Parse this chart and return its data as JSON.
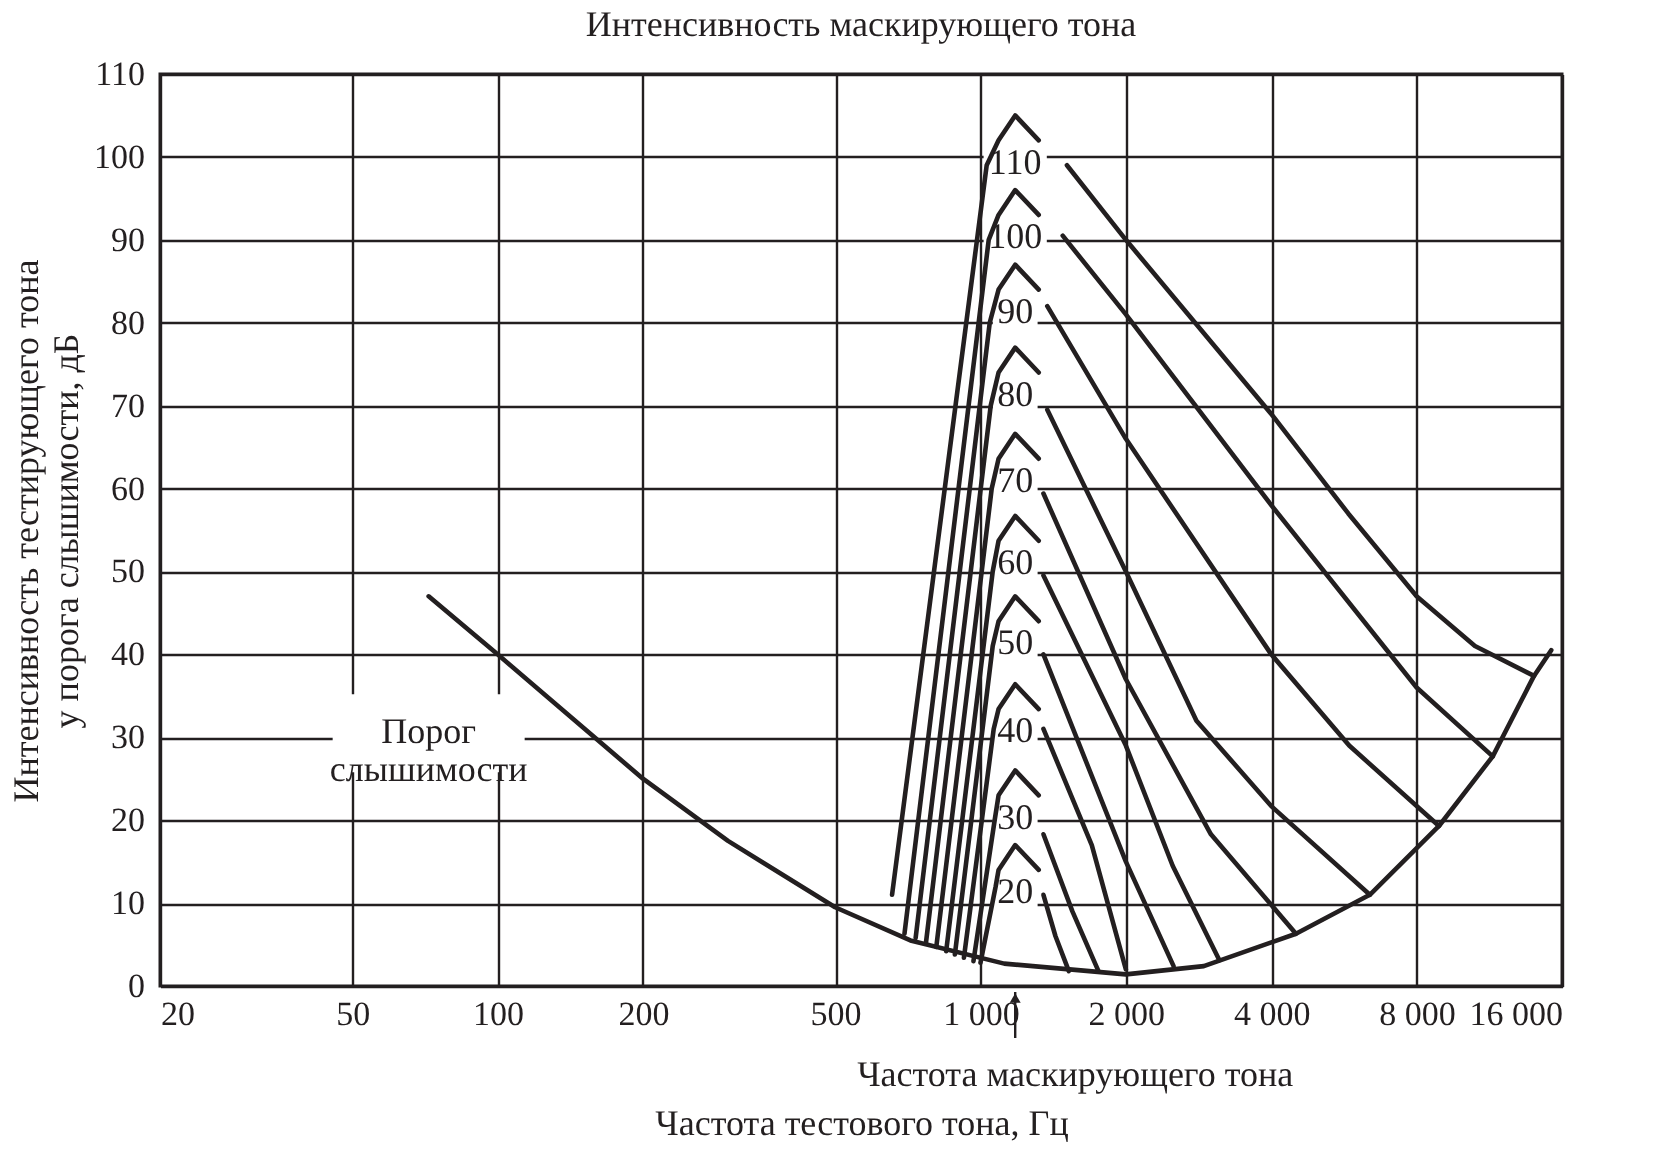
{
  "chart_data": {
    "type": "line",
    "title": "Интенсивность маскирующего тона",
    "xlabel": "Частота тестового тона, Гц",
    "ylabel": "Интенсивность тестирующего тона у порога слышимости, дБ",
    "log": "x",
    "xlim": [
      20,
      16000
    ],
    "xticks": [
      20,
      50,
      100,
      200,
      500,
      {
        "value": 1000,
        "label": "1 000"
      },
      {
        "value": 2000,
        "label": "2 000"
      },
      {
        "value": 4000,
        "label": "4 000"
      },
      {
        "value": 8000,
        "label": "8 000"
      },
      {
        "value": 16000,
        "label": "16 000"
      }
    ],
    "ylim": [
      0,
      110
    ],
    "yticks": [
      0,
      10,
      20,
      30,
      40,
      50,
      60,
      70,
      80,
      90,
      100,
      110
    ],
    "grid": true,
    "marker": "none",
    "line_style": "solid",
    "series": [
      {
        "name": "Порог слышимости",
        "color": "#231f20",
        "x": [
          72,
          100,
          200,
          300,
          500,
          716,
          1120,
          2000,
          2900,
          4500,
          6400,
          8900,
          11500,
          14000,
          15200
        ],
        "values": [
          47,
          40,
          25,
          17.5,
          9.5,
          5.5,
          2.7,
          1.4,
          2.4,
          6.3,
          11,
          19.3,
          27.7,
          37.4,
          40.5
        ]
      },
      {
        "name": "110",
        "color": "#231f20",
        "x": [
          656,
          1030,
          1090,
          1180,
          1320,
          1400,
          1510,
          2000,
          4000,
          5774,
          8000,
          10564,
          14000
        ],
        "values": [
          11,
          99,
          102,
          105,
          102,
          null,
          99,
          90,
          69,
          57,
          47,
          41,
          37.4
        ]
      },
      {
        "name": "100",
        "color": "#231f20",
        "x": [
          696,
          1040,
          1090,
          1180,
          1320,
          1400,
          1480,
          2000,
          4000,
          8000,
          11500
        ],
        "values": [
          6.3,
          90,
          93,
          96,
          93,
          null,
          90.5,
          81,
          58,
          36,
          27.7
        ]
      },
      {
        "name": "90",
        "color": "#231f20",
        "x": [
          734,
          1045,
          1090,
          1180,
          1320,
          1350,
          1375,
          2000,
          4000,
          5800,
          8900
        ],
        "values": [
          5.8,
          80,
          84,
          87,
          84,
          null,
          82,
          66,
          40,
          29,
          19.3
        ]
      },
      {
        "name": "80",
        "color": "#231f20",
        "x": [
          771,
          1050,
          1090,
          1180,
          1320,
          1350,
          1375,
          2000,
          2800,
          4000,
          6400
        ],
        "values": [
          5.2,
          70,
          74,
          77,
          74,
          null,
          69.5,
          50,
          32,
          21.7,
          11
        ]
      },
      {
        "name": "70",
        "color": "#231f20",
        "x": [
          810,
          1055,
          1090,
          1180,
          1320,
          1340,
          1350,
          2000,
          3000,
          4500
        ],
        "values": [
          4.7,
          60,
          63.6,
          66.6,
          63.6,
          null,
          59.4,
          37,
          18.3,
          6.3
        ]
      },
      {
        "name": "60",
        "color": "#231f20",
        "x": [
          849,
          1060,
          1090,
          1180,
          1320,
          1340,
          1350,
          2000,
          2500,
          3124
        ],
        "values": [
          4.2,
          50,
          53.7,
          56.7,
          53.7,
          null,
          49.5,
          29,
          14.5,
          3.1
        ]
      },
      {
        "name": "50",
        "color": "#231f20",
        "x": [
          885,
          1060,
          1090,
          1180,
          1320,
          1340,
          1350,
          2000,
          2511
        ],
        "values": [
          3.8,
          41,
          44,
          47,
          44,
          null,
          40,
          15,
          2.4
        ]
      },
      {
        "name": "40",
        "color": "#231f20",
        "x": [
          924,
          1065,
          1090,
          1180,
          1320,
          1340,
          1350,
          1700,
          2000
        ],
        "values": [
          3.4,
          31,
          33.4,
          36.4,
          33.4,
          null,
          31,
          17,
          2
        ]
      },
      {
        "name": "30",
        "color": "#231f20",
        "x": [
          967,
          1070,
          1090,
          1180,
          1320,
          1340,
          1350,
          1550,
          1755
        ],
        "values": [
          3,
          20,
          23,
          26,
          23,
          null,
          18.3,
          9,
          1.8
        ]
      },
      {
        "name": "20",
        "color": "#231f20",
        "x": [
          1000,
          1075,
          1090,
          1180,
          1320,
          1340,
          1350,
          1430,
          1524
        ],
        "values": [
          2.8,
          12,
          14,
          17,
          14,
          null,
          11,
          6,
          1.8
        ]
      }
    ],
    "annotations": [
      "Частота маскирующего тона"
    ]
  }
}
